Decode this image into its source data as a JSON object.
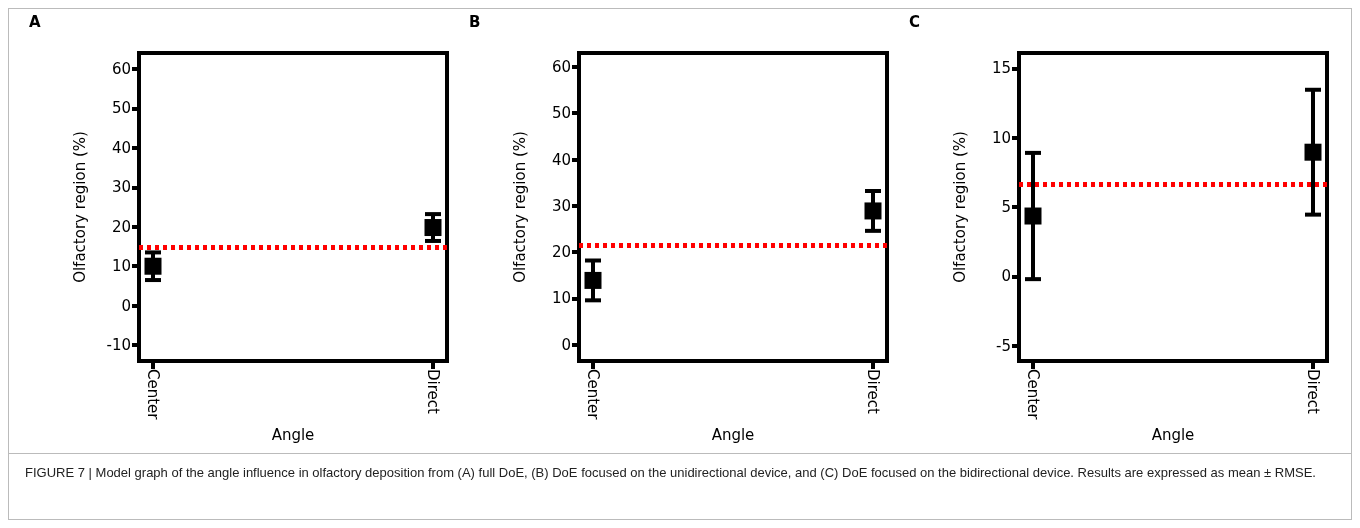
{
  "chart_data": [
    {
      "type": "scatter",
      "title": "A",
      "categories": [
        "Center",
        "Direct"
      ],
      "xlabel": "Angle",
      "ylabel": "Olfactory region (%)",
      "values": [
        10,
        19.8
      ],
      "errors": [
        3.5,
        3.4
      ],
      "color": "#000000",
      "marker": "square",
      "ylim": [
        -14,
        64
      ],
      "yticks": [
        -10,
        0,
        10,
        20,
        30,
        40,
        50,
        60
      ],
      "ref_lines": [
        {
          "axis": "y",
          "value": 14.8,
          "color": "#ff0000",
          "line_style": "dotted"
        }
      ]
    },
    {
      "type": "scatter",
      "title": "B",
      "categories": [
        "Center",
        "Direct"
      ],
      "xlabel": "Angle",
      "ylabel": "Olfactory region (%)",
      "values": [
        13.9,
        28.9
      ],
      "errors": [
        4.3,
        4.3
      ],
      "color": "#000000",
      "marker": "square",
      "ylim": [
        -3.5,
        63
      ],
      "yticks": [
        0,
        10,
        20,
        30,
        40,
        50,
        60
      ],
      "ref_lines": [
        {
          "axis": "y",
          "value": 21.4,
          "color": "#ff0000",
          "line_style": "dotted"
        }
      ]
    },
    {
      "type": "scatter",
      "title": "C",
      "categories": [
        "Center",
        "Direct"
      ],
      "xlabel": "Angle",
      "ylabel": "Olfactory region (%)",
      "values": [
        4.35,
        8.95
      ],
      "errors": [
        4.55,
        4.5
      ],
      "color": "#000000",
      "marker": "square",
      "ylim": [
        -6.1,
        16.1
      ],
      "yticks": [
        -5,
        0,
        5,
        10,
        15
      ],
      "ref_lines": [
        {
          "axis": "y",
          "value": 6.65,
          "color": "#ff0000",
          "line_style": "dotted"
        }
      ],
      "annotations": [
        "FIGURE 7 | Model graph of the angle influence in olfactory deposition from (A) full DoE, (B) DoE focused on the unidirectional device, and (C) DoE focused on the bidirectional device. Results are expressed as mean ± RMSE."
      ]
    }
  ]
}
